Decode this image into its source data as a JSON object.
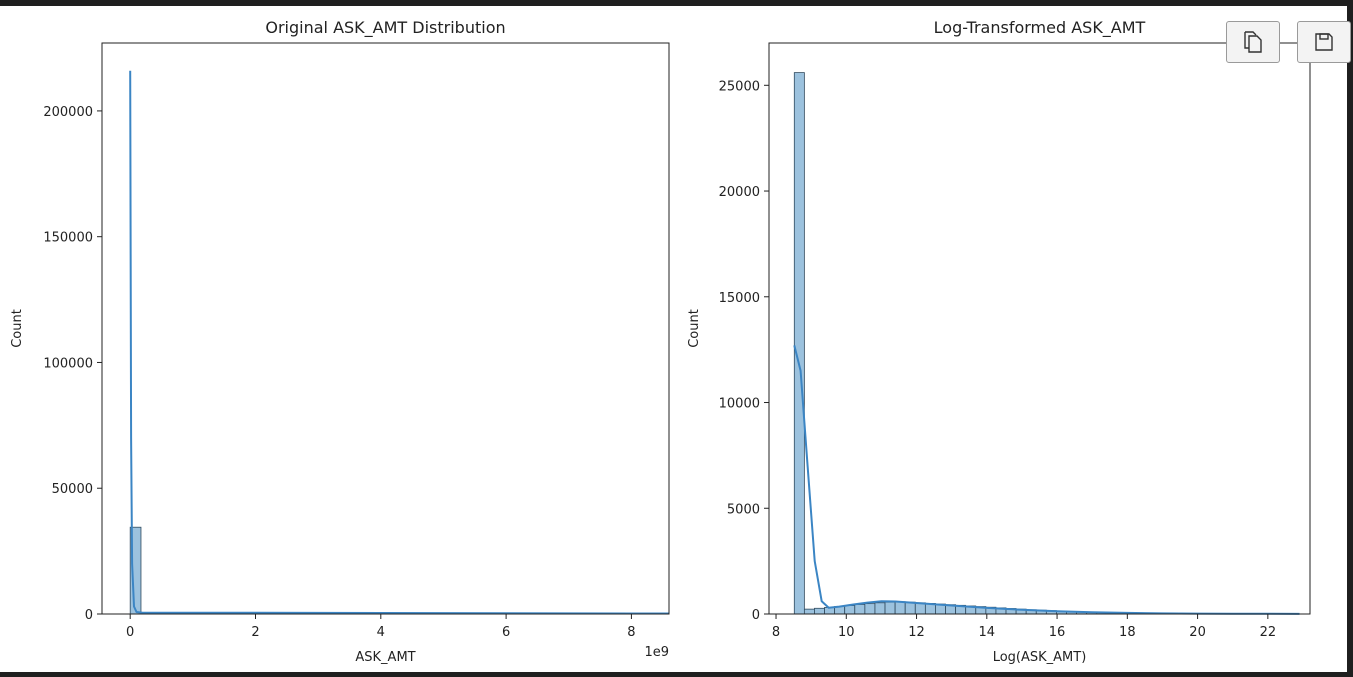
{
  "colors": {
    "line": "#3b85c4",
    "bar_fill": "#9cc2de",
    "bar_stroke": "#2f4a5e",
    "axis": "#222222"
  },
  "toolbar": {
    "copy_icon": "copy-icon",
    "save_icon": "save-icon"
  },
  "chart_data": [
    {
      "type": "bar",
      "title": "Original ASK_AMT Distribution",
      "xlabel": "ASK_AMT",
      "ylabel": "Count",
      "offset_text": "1e9",
      "xlim": [
        -0.45,
        8.6
      ],
      "ylim": [
        0,
        227000
      ],
      "xticks": [
        0,
        2,
        4,
        6,
        8
      ],
      "yticks": [
        0,
        50000,
        100000,
        150000,
        200000
      ],
      "bin_width": 0.172,
      "bins": [
        {
          "x0": 0.0,
          "count": 34500
        },
        {
          "x0": 0.172,
          "count": 200
        },
        {
          "x0": 0.344,
          "count": 100
        }
      ],
      "kde": {
        "x": [
          0.0,
          0.006,
          0.015,
          0.03,
          0.06,
          0.1,
          0.2,
          0.5,
          1,
          2,
          4,
          6,
          8,
          8.6
        ],
        "y": [
          216000,
          150000,
          70000,
          20000,
          3000,
          800,
          500,
          500,
          500,
          500,
          400,
          300,
          200,
          200
        ]
      }
    },
    {
      "type": "bar",
      "title": "Log-Transformed ASK_AMT",
      "xlabel": "Log(ASK_AMT)",
      "ylabel": "Count",
      "xlim": [
        7.8,
        23.2
      ],
      "ylim": [
        0,
        27000
      ],
      "xticks": [
        8,
        10,
        12,
        14,
        16,
        18,
        20,
        22
      ],
      "yticks": [
        0,
        5000,
        10000,
        15000,
        20000,
        25000
      ],
      "bin_start": 8.52,
      "bin_width": 0.287,
      "counts": [
        25600,
        230,
        270,
        310,
        360,
        400,
        450,
        490,
        530,
        560,
        580,
        560,
        530,
        500,
        470,
        440,
        410,
        380,
        350,
        320,
        290,
        260,
        230,
        200,
        180,
        160,
        140,
        120,
        100,
        85,
        70,
        60,
        50,
        40,
        32,
        26,
        20,
        15,
        12,
        10,
        8,
        6,
        5,
        4,
        3,
        3,
        2,
        2,
        1,
        1
      ],
      "kde": {
        "x": [
          8.52,
          8.7,
          8.9,
          9.1,
          9.3,
          9.5,
          9.8,
          10.2,
          10.6,
          11.0,
          11.4,
          12.0,
          13.0,
          14.0,
          15.0,
          16.0,
          17.0,
          18.0,
          19.0,
          20.0,
          21.0,
          22.0,
          22.9
        ],
        "y": [
          12700,
          11500,
          7000,
          2500,
          600,
          300,
          350,
          450,
          540,
          600,
          590,
          520,
          400,
          290,
          200,
          130,
          80,
          50,
          30,
          20,
          12,
          8,
          5
        ]
      }
    }
  ]
}
